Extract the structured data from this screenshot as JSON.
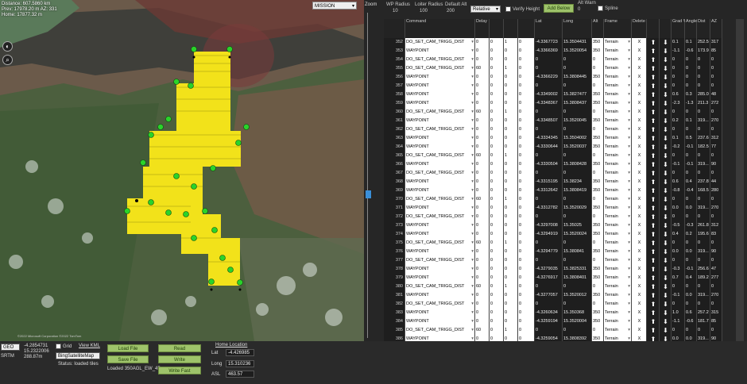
{
  "map": {
    "distance": "Distance: 607.5860 km",
    "prev": "Prev: 17978.20 m AZ: 331",
    "home": "Home: 17877.32 m",
    "view_mode": "MISSION",
    "zoom_label": "Zoom",
    "copyright": "©2022 Microsoft Corporation ©2022 TomTom"
  },
  "header": {
    "wp_radius_label": "WP Radius",
    "wp_radius": "10",
    "loiter_radius_label": "Loiter Radius",
    "loiter_radius": "100",
    "default_alt_label": "Default Alt",
    "default_alt": "200",
    "alt_mode": "Relative",
    "verify_height": "Verify Height",
    "add_below": "Add Below",
    "alt_warn_label": "Alt Warn",
    "alt_warn": "0",
    "spline": "Spline"
  },
  "columns": [
    "",
    "Command",
    "Delay",
    "",
    "",
    "",
    "Lat",
    "Long",
    "Alt",
    "Frame",
    "Delete",
    "",
    "",
    "Grad %",
    "Angle",
    "Dist",
    "AZ"
  ],
  "rows": [
    {
      "n": "352",
      "cmd": "DO_SET_CAM_TRIGG_DIST",
      "p1": "0",
      "p2": "0",
      "p3": "1",
      "p4": "0",
      "lat": "-4.3367723",
      "lng": "15.3504431",
      "alt": "350",
      "frame": "Terrain",
      "grad": "0.1",
      "ang": "0.1",
      "dist": "252.5",
      "az": "317"
    },
    {
      "n": "353",
      "cmd": "WAYPOINT",
      "p1": "0",
      "p2": "0",
      "p3": "0",
      "p4": "0",
      "lat": "-4.3366369",
      "lng": "15.3520054",
      "alt": "350",
      "frame": "Terrain",
      "grad": "-1.1",
      "ang": "-0.6",
      "dist": "173.9",
      "az": "85"
    },
    {
      "n": "354",
      "cmd": "DO_SET_CAM_TRIGG_DIST",
      "p1": "0",
      "p2": "0",
      "p3": "0",
      "p4": "0",
      "lat": "0",
      "lng": "0",
      "alt": "0",
      "frame": "Terrain",
      "grad": "0",
      "ang": "0",
      "dist": "0",
      "az": "0"
    },
    {
      "n": "355",
      "cmd": "DO_SET_CAM_TRIGG_DIST",
      "p1": "60",
      "p2": "0",
      "p3": "1",
      "p4": "0",
      "lat": "0",
      "lng": "0",
      "alt": "0",
      "frame": "Terrain",
      "grad": "0",
      "ang": "0",
      "dist": "0",
      "az": "0"
    },
    {
      "n": "356",
      "cmd": "WAYPOINT",
      "p1": "0",
      "p2": "0",
      "p3": "0",
      "p4": "0",
      "lat": "-4.3366229",
      "lng": "15.3808445",
      "alt": "350",
      "frame": "Terrain",
      "grad": "0",
      "ang": "0",
      "dist": "0",
      "az": "0"
    },
    {
      "n": "357",
      "cmd": "WAYPOINT",
      "p1": "0",
      "p2": "0",
      "p3": "0",
      "p4": "0",
      "lat": "0",
      "lng": "0",
      "alt": "0",
      "frame": "Terrain",
      "grad": "0",
      "ang": "0",
      "dist": "0",
      "az": "0"
    },
    {
      "n": "358",
      "cmd": "WAYPOINT",
      "p1": "0",
      "p2": "0",
      "p3": "0",
      "p4": "0",
      "lat": "-4.3349002",
      "lng": "15.3827477",
      "alt": "350",
      "frame": "Terrain",
      "grad": "0.6",
      "ang": "0.3",
      "dist": "285.0",
      "az": "48"
    },
    {
      "n": "359",
      "cmd": "WAYPOINT",
      "p1": "0",
      "p2": "0",
      "p3": "0",
      "p4": "0",
      "lat": "-4.3348367",
      "lng": "15.3808437",
      "alt": "350",
      "frame": "Terrain",
      "grad": "-2.3",
      "ang": "-1.3",
      "dist": "211.3",
      "az": "272"
    },
    {
      "n": "360",
      "cmd": "DO_SET_CAM_TRIGG_DIST",
      "p1": "60",
      "p2": "0",
      "p3": "1",
      "p4": "0",
      "lat": "0",
      "lng": "0",
      "alt": "0",
      "frame": "Terrain",
      "grad": "0",
      "ang": "0",
      "dist": "0",
      "az": "0"
    },
    {
      "n": "361",
      "cmd": "WAYPOINT",
      "p1": "0",
      "p2": "0",
      "p3": "0",
      "p4": "0",
      "lat": "-4.3348507",
      "lng": "15.3520045",
      "alt": "350",
      "frame": "Terrain",
      "grad": "0.2",
      "ang": "0.1",
      "dist": "319...",
      "az": "270"
    },
    {
      "n": "362",
      "cmd": "DO_SET_CAM_TRIGG_DIST",
      "p1": "0",
      "p2": "0",
      "p3": "0",
      "p4": "0",
      "lat": "0",
      "lng": "0",
      "alt": "0",
      "frame": "Terrain",
      "grad": "0",
      "ang": "0",
      "dist": "0",
      "az": "0"
    },
    {
      "n": "363",
      "cmd": "WAYPOINT",
      "p1": "0",
      "p2": "0",
      "p3": "0",
      "p4": "0",
      "lat": "-4.3334345",
      "lng": "15.3504002",
      "alt": "350",
      "frame": "Terrain",
      "grad": "0.1",
      "ang": "0.5",
      "dist": "237.6",
      "az": "312"
    },
    {
      "n": "364",
      "cmd": "WAYPOINT",
      "p1": "0",
      "p2": "0",
      "p3": "0",
      "p4": "0",
      "lat": "-4.3330644",
      "lng": "15.3520037",
      "alt": "350",
      "frame": "Terrain",
      "grad": "-0.2",
      "ang": "-0.1",
      "dist": "182.5",
      "az": "77"
    },
    {
      "n": "365",
      "cmd": "DO_SET_CAM_TRIGG_DIST",
      "p1": "60",
      "p2": "0",
      "p3": "1",
      "p4": "0",
      "lat": "0",
      "lng": "0",
      "alt": "0",
      "frame": "Terrain",
      "grad": "0",
      "ang": "0",
      "dist": "0",
      "az": "0"
    },
    {
      "n": "366",
      "cmd": "WAYPOINT",
      "p1": "0",
      "p2": "0",
      "p3": "0",
      "p4": "0",
      "lat": "-4.3330504",
      "lng": "15.3808428",
      "alt": "350",
      "frame": "Terrain",
      "grad": "-0.1",
      "ang": "-0.1",
      "dist": "319...",
      "az": "90"
    },
    {
      "n": "367",
      "cmd": "DO_SET_CAM_TRIGG_DIST",
      "p1": "0",
      "p2": "0",
      "p3": "0",
      "p4": "0",
      "lat": "0",
      "lng": "0",
      "alt": "0",
      "frame": "Terrain",
      "grad": "0",
      "ang": "0",
      "dist": "0",
      "az": "0"
    },
    {
      "n": "368",
      "cmd": "WAYPOINT",
      "p1": "0",
      "p2": "0",
      "p3": "0",
      "p4": "0",
      "lat": "-4.3315195",
      "lng": "15.38234",
      "alt": "350",
      "frame": "Terrain",
      "grad": "0.6",
      "ang": "0.4",
      "dist": "237.8",
      "az": "44"
    },
    {
      "n": "369",
      "cmd": "WAYPOINT",
      "p1": "0",
      "p2": "0",
      "p3": "0",
      "p4": "0",
      "lat": "-4.3312642",
      "lng": "15.3808419",
      "alt": "350",
      "frame": "Terrain",
      "grad": "-0.8",
      "ang": "-0.4",
      "dist": "168.5",
      "az": "280"
    },
    {
      "n": "370",
      "cmd": "DO_SET_CAM_TRIGG_DIST",
      "p1": "60",
      "p2": "0",
      "p3": "1",
      "p4": "0",
      "lat": "0",
      "lng": "0",
      "alt": "0",
      "frame": "Terrain",
      "grad": "0",
      "ang": "0",
      "dist": "0",
      "az": "0"
    },
    {
      "n": "371",
      "cmd": "WAYPOINT",
      "p1": "0",
      "p2": "0",
      "p3": "0",
      "p4": "0",
      "lat": "-4.3312782",
      "lng": "15.3520029",
      "alt": "350",
      "frame": "Terrain",
      "grad": "0.0",
      "ang": "0.0",
      "dist": "319...",
      "az": "270"
    },
    {
      "n": "372",
      "cmd": "DO_SET_CAM_TRIGG_DIST",
      "p1": "0",
      "p2": "0",
      "p3": "0",
      "p4": "0",
      "lat": "0",
      "lng": "0",
      "alt": "0",
      "frame": "Terrain",
      "grad": "0",
      "ang": "0",
      "dist": "0",
      "az": "0"
    },
    {
      "n": "373",
      "cmd": "WAYPOINT",
      "p1": "0",
      "p2": "0",
      "p3": "0",
      "p4": "0",
      "lat": "-4.3297008",
      "lng": "15.35025",
      "alt": "350",
      "frame": "Terrain",
      "grad": "-0.5",
      "ang": "-0.3",
      "dist": "261.8",
      "az": "312"
    },
    {
      "n": "374",
      "cmd": "WAYPOINT",
      "p1": "0",
      "p2": "0",
      "p3": "0",
      "p4": "0",
      "lat": "-4.3294919",
      "lng": "15.3520024",
      "alt": "350",
      "frame": "Terrain",
      "grad": "0.4",
      "ang": "0.2",
      "dist": "195.6",
      "az": "83"
    },
    {
      "n": "375",
      "cmd": "DO_SET_CAM_TRIGG_DIST",
      "p1": "60",
      "p2": "0",
      "p3": "1",
      "p4": "0",
      "lat": "0",
      "lng": "0",
      "alt": "0",
      "frame": "Terrain",
      "grad": "0",
      "ang": "0",
      "dist": "0",
      "az": "0"
    },
    {
      "n": "376",
      "cmd": "WAYPOINT",
      "p1": "0",
      "p2": "0",
      "p3": "0",
      "p4": "0",
      "lat": "-4.3294779",
      "lng": "15.380841",
      "alt": "350",
      "frame": "Terrain",
      "grad": "0.0",
      "ang": "0.0",
      "dist": "319...",
      "az": "90"
    },
    {
      "n": "377",
      "cmd": "DO_SET_CAM_TRIGG_DIST",
      "p1": "0",
      "p2": "0",
      "p3": "0",
      "p4": "0",
      "lat": "0",
      "lng": "0",
      "alt": "0",
      "frame": "Terrain",
      "grad": "0",
      "ang": "0",
      "dist": "0",
      "az": "0"
    },
    {
      "n": "378",
      "cmd": "WAYPOINT",
      "p1": "0",
      "p2": "0",
      "p3": "0",
      "p4": "0",
      "lat": "-4.3279035",
      "lng": "15.3825331",
      "alt": "350",
      "frame": "Terrain",
      "grad": "-0.3",
      "ang": "-0.1",
      "dist": "256.6",
      "az": "47"
    },
    {
      "n": "379",
      "cmd": "WAYPOINT",
      "p1": "0",
      "p2": "0",
      "p3": "0",
      "p4": "0",
      "lat": "-4.3276917",
      "lng": "15.3808401",
      "alt": "350",
      "frame": "Terrain",
      "grad": "0.7",
      "ang": "0.4",
      "dist": "189.2",
      "az": "277"
    },
    {
      "n": "380",
      "cmd": "DO_SET_CAM_TRIGG_DIST",
      "p1": "60",
      "p2": "0",
      "p3": "1",
      "p4": "0",
      "lat": "0",
      "lng": "0",
      "alt": "0",
      "frame": "Terrain",
      "grad": "0",
      "ang": "0",
      "dist": "0",
      "az": "0"
    },
    {
      "n": "381",
      "cmd": "WAYPOINT",
      "p1": "0",
      "p2": "0",
      "p3": "0",
      "p4": "0",
      "lat": "-4.3277057",
      "lng": "15.3520012",
      "alt": "350",
      "frame": "Terrain",
      "grad": "-0.1",
      "ang": "0.0",
      "dist": "319...",
      "az": "270"
    },
    {
      "n": "382",
      "cmd": "DO_SET_CAM_TRIGG_DIST",
      "p1": "0",
      "p2": "0",
      "p3": "0",
      "p4": "0",
      "lat": "0",
      "lng": "0",
      "alt": "0",
      "frame": "Terrain",
      "grad": "0",
      "ang": "0",
      "dist": "0",
      "az": "0"
    },
    {
      "n": "383",
      "cmd": "WAYPOINT",
      "p1": "0",
      "p2": "0",
      "p3": "0",
      "p4": "0",
      "lat": "-4.3260634",
      "lng": "15.350368",
      "alt": "350",
      "frame": "Terrain",
      "grad": "1.0",
      "ang": "0.6",
      "dist": "257.2",
      "az": "315"
    },
    {
      "n": "384",
      "cmd": "WAYPOINT",
      "p1": "0",
      "p2": "0",
      "p3": "0",
      "p4": "0",
      "lat": "-4.3259194",
      "lng": "15.3520004",
      "alt": "350",
      "frame": "Terrain",
      "grad": "-1.1",
      "ang": "-0.6",
      "dist": "181.7",
      "az": "85"
    },
    {
      "n": "385",
      "cmd": "DO_SET_CAM_TRIGG_DIST",
      "p1": "60",
      "p2": "0",
      "p3": "1",
      "p4": "0",
      "lat": "0",
      "lng": "0",
      "alt": "0",
      "frame": "Terrain",
      "grad": "0",
      "ang": "0",
      "dist": "0",
      "az": "0"
    },
    {
      "n": "386",
      "cmd": "WAYPOINT",
      "p1": "0",
      "p2": "0",
      "p3": "0",
      "p4": "0",
      "lat": "-4.3259054",
      "lng": "15.3808392",
      "alt": "350",
      "frame": "Terrain",
      "grad": "0.0",
      "ang": "0.0",
      "dist": "319...",
      "az": "90"
    }
  ],
  "delete_label": "X",
  "bottom": {
    "coord_mode": "GEO",
    "lat": "-4.2854731",
    "lng": "15.2322006",
    "srtm_label": "SRTM",
    "srtm": "288.87m",
    "grid": "Grid",
    "view_kml": "View KML",
    "map_type": "BingSatelliteMap",
    "status": "Status: loaded tiles",
    "load_file": "Load File",
    "save_file": "Save File",
    "loaded": "Loaded 350AGL_EW_45",
    "read": "Read",
    "write": "Write",
    "write_fast": "Write Fast",
    "home_location": "Home Location",
    "lat_label": "Lat",
    "home_lat": "-4.426985",
    "long_label": "Long",
    "home_long": "15.310236",
    "asl_label": "ASL",
    "home_asl": "463.57"
  }
}
